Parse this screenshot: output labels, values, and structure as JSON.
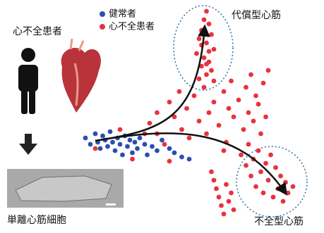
{
  "chart_data": {
    "type": "scatter",
    "annotations": [
      "心不全患者",
      "代償型心筋",
      "不全型心筋",
      "単離心筋細胞"
    ],
    "xlim": [
      0,
      100
    ],
    "ylim": [
      0,
      100
    ],
    "series": [
      {
        "name": "心不全患者",
        "color": "#e8323c",
        "x": [
          55,
          54,
          56,
          53,
          57,
          52,
          55,
          58,
          51,
          54,
          56,
          53,
          57,
          55,
          52,
          58,
          54,
          56,
          53,
          55,
          30,
          32,
          35,
          38,
          40,
          42,
          44,
          45,
          47,
          48,
          50,
          52,
          54,
          55,
          56,
          58,
          60,
          62,
          63,
          64,
          65,
          66,
          68,
          70,
          71,
          72,
          73,
          74,
          75,
          76,
          77,
          78,
          79,
          80,
          62,
          69,
          71,
          72,
          73,
          74,
          75,
          76,
          77,
          78,
          79,
          80,
          81,
          82,
          83,
          84,
          85,
          86,
          87,
          88,
          90,
          57,
          58,
          59,
          60,
          61,
          62,
          63,
          64,
          65,
          66,
          10,
          20,
          25,
          35,
          40
        ],
        "y": [
          98,
          94,
          92,
          89,
          87,
          85,
          83,
          80,
          78,
          76,
          74,
          72,
          70,
          68,
          66,
          65,
          88,
          79,
          82,
          73,
          40,
          45,
          50,
          35,
          55,
          48,
          60,
          42,
          52,
          38,
          58,
          46,
          62,
          40,
          50,
          55,
          44,
          60,
          36,
          52,
          65,
          48,
          56,
          42,
          62,
          50,
          68,
          46,
          58,
          54,
          40,
          64,
          48,
          70,
          32,
          30,
          25,
          35,
          20,
          28,
          15,
          32,
          22,
          12,
          26,
          18,
          30,
          10,
          24,
          14,
          20,
          8,
          17,
          12,
          15,
          22,
          18,
          14,
          10,
          6,
          2,
          16,
          8,
          12,
          4,
          33,
          42,
          28,
          40,
          27
        ]
      },
      {
        "name": "健常者",
        "color": "#2a4fb0",
        "x": [
          6,
          8,
          10,
          11,
          12,
          13,
          14,
          15,
          16,
          17,
          18,
          19,
          20,
          21,
          22,
          23,
          24,
          25,
          26,
          27,
          28,
          30,
          31,
          33,
          35,
          37,
          40,
          42,
          45,
          48
        ],
        "y": [
          38,
          35,
          40,
          36,
          33,
          39,
          37,
          34,
          41,
          36,
          32,
          38,
          35,
          30,
          39,
          34,
          37,
          31,
          36,
          33,
          38,
          35,
          30,
          34,
          32,
          37,
          33,
          31,
          29,
          28
        ]
      }
    ]
  }
}
